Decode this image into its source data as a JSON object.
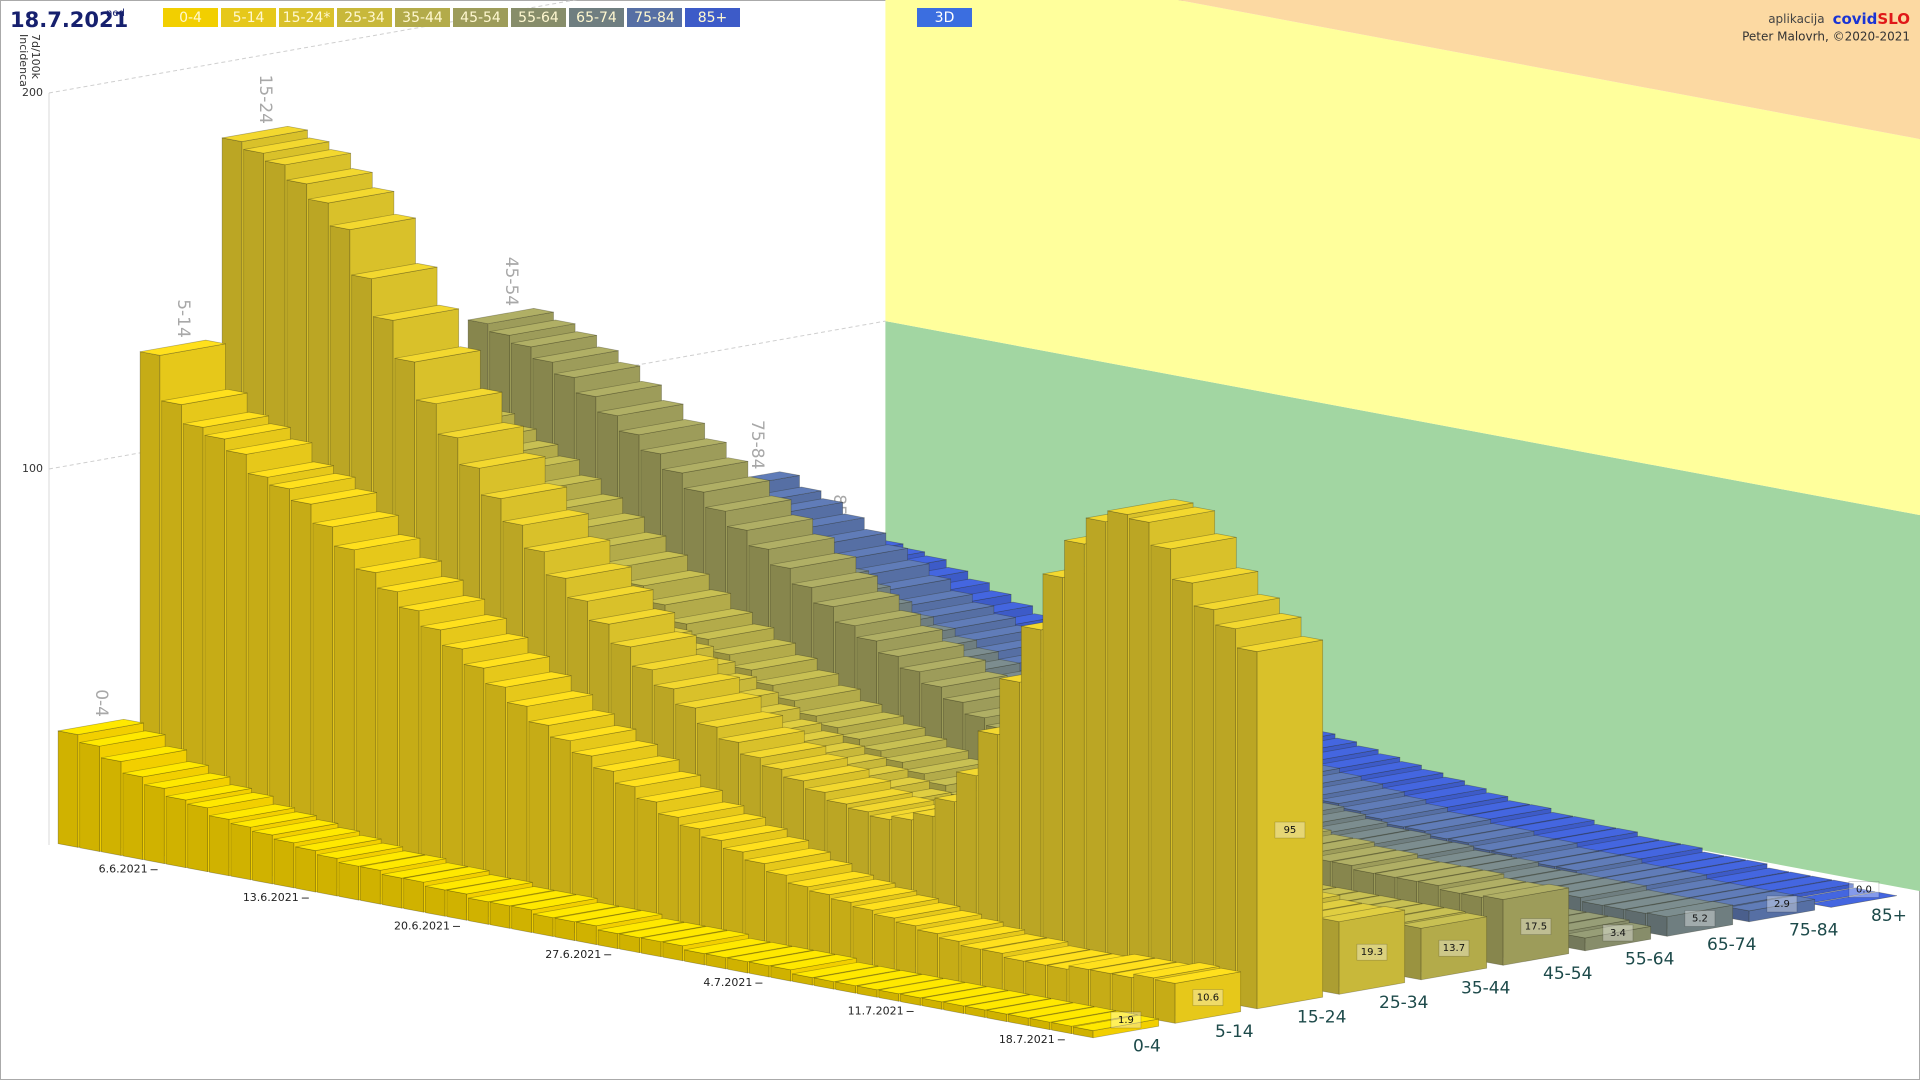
{
  "date": "18.7.2021",
  "weekday": "ned",
  "view_button": "3D",
  "app_prefix": "aplikacija",
  "brand_a": "covid",
  "brand_b": "SLO",
  "author": "Peter Malovrh, ©2020-2021",
  "chart_data": {
    "type": "bar3d",
    "y_label": [
      "7d/100k",
      "Incidenca"
    ],
    "ylim": [
      0,
      200
    ],
    "yticks": [
      100,
      200
    ],
    "grid": true,
    "zone_colors": [
      "#a2d6a2",
      "#ffff9c",
      "#fcd9a2"
    ],
    "categories": [
      null,
      null,
      null,
      null,
      null,
      "6.6.2021",
      null,
      null,
      null,
      null,
      null,
      null,
      "13.6.2021",
      null,
      null,
      null,
      null,
      null,
      null,
      "20.6.2021",
      null,
      null,
      null,
      null,
      null,
      null,
      "27.6.2021",
      null,
      null,
      null,
      null,
      null,
      null,
      "4.7.2021",
      null,
      null,
      null,
      null,
      null,
      null,
      "11.7.2021",
      null,
      null,
      null,
      null,
      null,
      null,
      "18.7.2021"
    ],
    "z_categories": [
      "0-4",
      "5-14",
      "15-24",
      "25-34",
      "35-44",
      "45-54",
      "55-64",
      "65-74",
      "75-84",
      "85+"
    ],
    "series": [
      {
        "name": "0-4",
        "color": "#f2cf00",
        "values": [
          30,
          28,
          25,
          22,
          20,
          18,
          17,
          15,
          14,
          13,
          12,
          11,
          10,
          9,
          9,
          8,
          8,
          7,
          7,
          6,
          6,
          6,
          5,
          5,
          5,
          4,
          4,
          4,
          4,
          3,
          3,
          3,
          3,
          3,
          2,
          2,
          2,
          2,
          2,
          2,
          2,
          2,
          2,
          2,
          2,
          2,
          2,
          1.9
        ]
      },
      {
        "name": "5-14",
        "color": "#e6c81a",
        "values": [
          127,
          115,
          110,
          108,
          105,
          100,
          98,
          95,
          90,
          85,
          80,
          76,
          72,
          68,
          64,
          60,
          56,
          52,
          48,
          45,
          42,
          39,
          36,
          33,
          30,
          28,
          26,
          24,
          22,
          20,
          18,
          17,
          16,
          15,
          14,
          13,
          12,
          11,
          10,
          10,
          9,
          9,
          9,
          10,
          10,
          10,
          11,
          10.6
        ]
      },
      {
        "name": "15-24*",
        "color": "#d9c12a",
        "values": [
          180,
          178,
          176,
          172,
          168,
          162,
          150,
          140,
          130,
          120,
          112,
          105,
          98,
          92,
          86,
          80,
          75,
          70,
          65,
          60,
          56,
          52,
          48,
          45,
          42,
          40,
          38,
          36,
          34,
          33,
          32,
          33,
          35,
          40,
          48,
          60,
          75,
          90,
          105,
          115,
          122,
          125,
          124,
          118,
          110,
          104,
          100,
          95
        ]
      },
      {
        "name": "25-34",
        "color": "#c8b83a",
        "values": [
          110,
          108,
          105,
          102,
          98,
          95,
          90,
          86,
          82,
          78,
          74,
          70,
          66,
          62,
          58,
          55,
          52,
          49,
          46,
          43,
          40,
          38,
          36,
          34,
          32,
          30,
          28,
          27,
          26,
          25,
          24,
          23,
          22,
          22,
          21,
          21,
          20,
          20,
          20,
          21,
          22,
          22,
          21,
          20,
          20,
          19,
          19,
          19.3
        ]
      },
      {
        "name": "35-44",
        "color": "#b3ab4a",
        "values": [
          105,
          102,
          99,
          96,
          93,
          90,
          86,
          82,
          78,
          74,
          70,
          66,
          62,
          58,
          55,
          52,
          49,
          46,
          43,
          40,
          38,
          36,
          34,
          32,
          30,
          28,
          26,
          24,
          22,
          21,
          20,
          19,
          18,
          17,
          16,
          16,
          15,
          15,
          14,
          14,
          14,
          14,
          14,
          14,
          14,
          14,
          14,
          13.7
        ]
      },
      {
        "name": "45-54",
        "color": "#9d9c5a",
        "values": [
          120,
          118,
          116,
          113,
          110,
          106,
          102,
          98,
          94,
          90,
          86,
          82,
          78,
          74,
          70,
          66,
          62,
          58,
          55,
          52,
          49,
          46,
          43,
          40,
          38,
          36,
          34,
          32,
          30,
          28,
          27,
          26,
          25,
          24,
          23,
          22,
          21,
          20,
          20,
          19,
          19,
          18,
          18,
          18,
          18,
          17,
          17,
          17.5
        ]
      },
      {
        "name": "55-64",
        "color": "#878d6a",
        "values": [
          80,
          78,
          75,
          72,
          69,
          66,
          63,
          60,
          57,
          54,
          51,
          48,
          45,
          42,
          40,
          38,
          36,
          34,
          32,
          30,
          28,
          26,
          24,
          22,
          20,
          18,
          16,
          15,
          14,
          13,
          12,
          11,
          10,
          9,
          8,
          8,
          7,
          7,
          6,
          6,
          5,
          5,
          5,
          4,
          4,
          4,
          4,
          3.4
        ]
      },
      {
        "name": "65-74",
        "color": "#6f7e80",
        "values": [
          70,
          68,
          66,
          63,
          60,
          57,
          54,
          51,
          48,
          45,
          42,
          40,
          38,
          36,
          34,
          32,
          30,
          28,
          26,
          24,
          22,
          20,
          19,
          18,
          17,
          16,
          15,
          14,
          13,
          12,
          11,
          10,
          9,
          9,
          8,
          8,
          7,
          7,
          7,
          6,
          6,
          6,
          6,
          6,
          5,
          5,
          5,
          5.2
        ]
      },
      {
        "name": "75-84",
        "color": "#566fa4",
        "values": [
          65,
          62,
          60,
          57,
          54,
          51,
          48,
          45,
          42,
          40,
          38,
          36,
          34,
          32,
          30,
          28,
          26,
          24,
          22,
          20,
          19,
          18,
          17,
          16,
          15,
          14,
          13,
          12,
          11,
          10,
          9,
          8,
          8,
          7,
          7,
          6,
          6,
          5,
          5,
          5,
          4,
          4,
          4,
          3,
          3,
          3,
          3,
          2.9
        ]
      },
      {
        "name": "85+",
        "color": "#3d5bc8",
        "values": [
          45,
          44,
          43,
          42,
          40,
          38,
          36,
          34,
          32,
          30,
          28,
          27,
          26,
          25,
          24,
          22,
          20,
          19,
          18,
          17,
          16,
          15,
          14,
          13,
          12,
          11,
          10,
          9,
          8,
          7,
          6,
          6,
          5,
          5,
          4,
          4,
          3,
          3,
          3,
          2,
          2,
          2,
          1,
          1,
          1,
          1,
          0,
          0
        ],
        "value_labels": [
          null,
          null,
          null,
          null,
          null,
          null,
          null,
          null,
          null,
          null,
          null,
          null,
          null,
          null,
          null,
          null,
          null,
          null,
          null,
          null,
          null,
          null,
          null,
          null,
          null,
          null,
          null,
          null,
          null,
          null,
          null,
          null,
          null,
          null,
          null,
          null,
          null,
          null,
          null,
          null,
          null,
          null,
          null,
          null,
          null,
          null,
          null,
          "0.0"
        ]
      }
    ]
  }
}
